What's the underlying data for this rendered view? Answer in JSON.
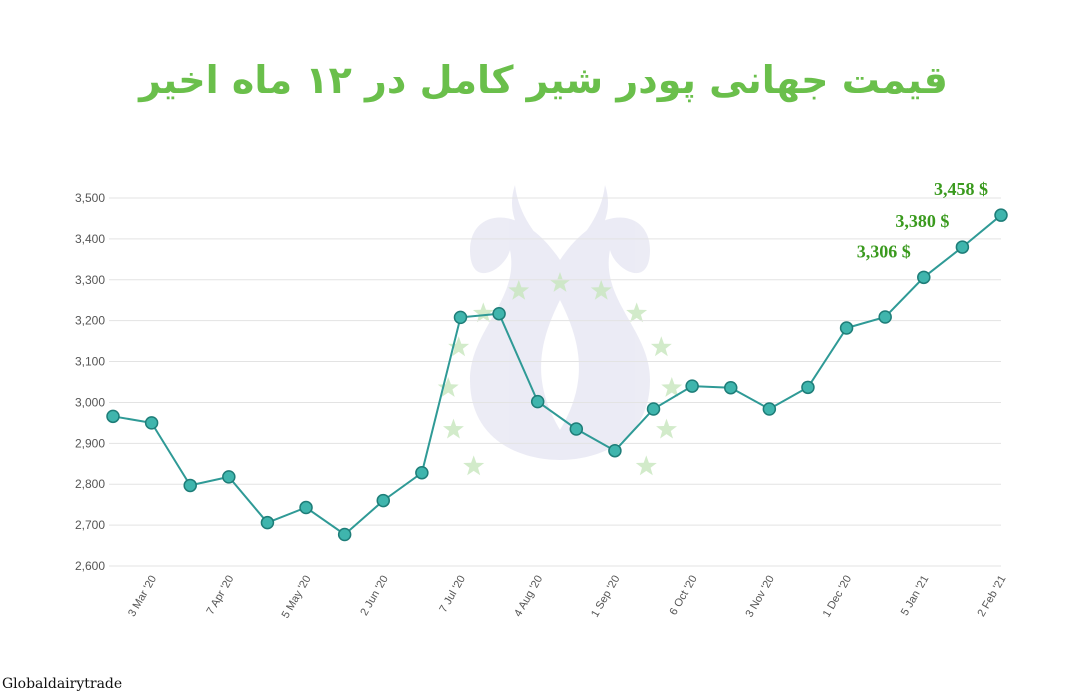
{
  "title": "قیمت جهانی پودر شیر کامل در ۱۲ ماه اخیر",
  "source": "Globaldairytrade",
  "colors": {
    "title": "#6abf4b",
    "line": "#2f9a96",
    "marker_fill": "#3fb5ad",
    "marker_stroke": "#1e7d78",
    "label": "#3a9a1e",
    "grid": "#e3e3e3"
  },
  "chart_data": {
    "type": "line",
    "ylim": [
      2600,
      3500
    ],
    "yticks": [
      "2,600",
      "2,700",
      "2,800",
      "2,900",
      "3,000",
      "3,100",
      "3,200",
      "3,300",
      "3,400",
      "3,500"
    ],
    "ytick_values": [
      2600,
      2700,
      2800,
      2900,
      3000,
      3100,
      3200,
      3300,
      3400,
      3500
    ],
    "xtick_labels": [
      "3 Mar '20",
      "7 Apr '20",
      "5 May '20",
      "2 Jun '20",
      "7 Jul '20",
      "4 Aug '20",
      "1 Sep '20",
      "6 Oct '20",
      "3 Nov '20",
      "1 Dec '20",
      "5 Jan '21",
      "2 Feb '21"
    ],
    "xtick_indices": [
      1,
      3,
      5,
      7,
      9,
      11,
      13,
      15,
      17,
      19,
      21,
      23
    ],
    "values": [
      2966,
      2950,
      2797,
      2818,
      2706,
      2743,
      2677,
      2760,
      2828,
      3208,
      3217,
      3002,
      2935,
      2882,
      2984,
      3040,
      3036,
      2984,
      3037,
      3182,
      3209,
      3306,
      3380,
      3458
    ],
    "grid": true,
    "annotations": [
      {
        "index": 21,
        "text": "3,306 $"
      },
      {
        "index": 22,
        "text": "3,380 $"
      },
      {
        "index": 23,
        "text": "3,458 $"
      }
    ]
  }
}
